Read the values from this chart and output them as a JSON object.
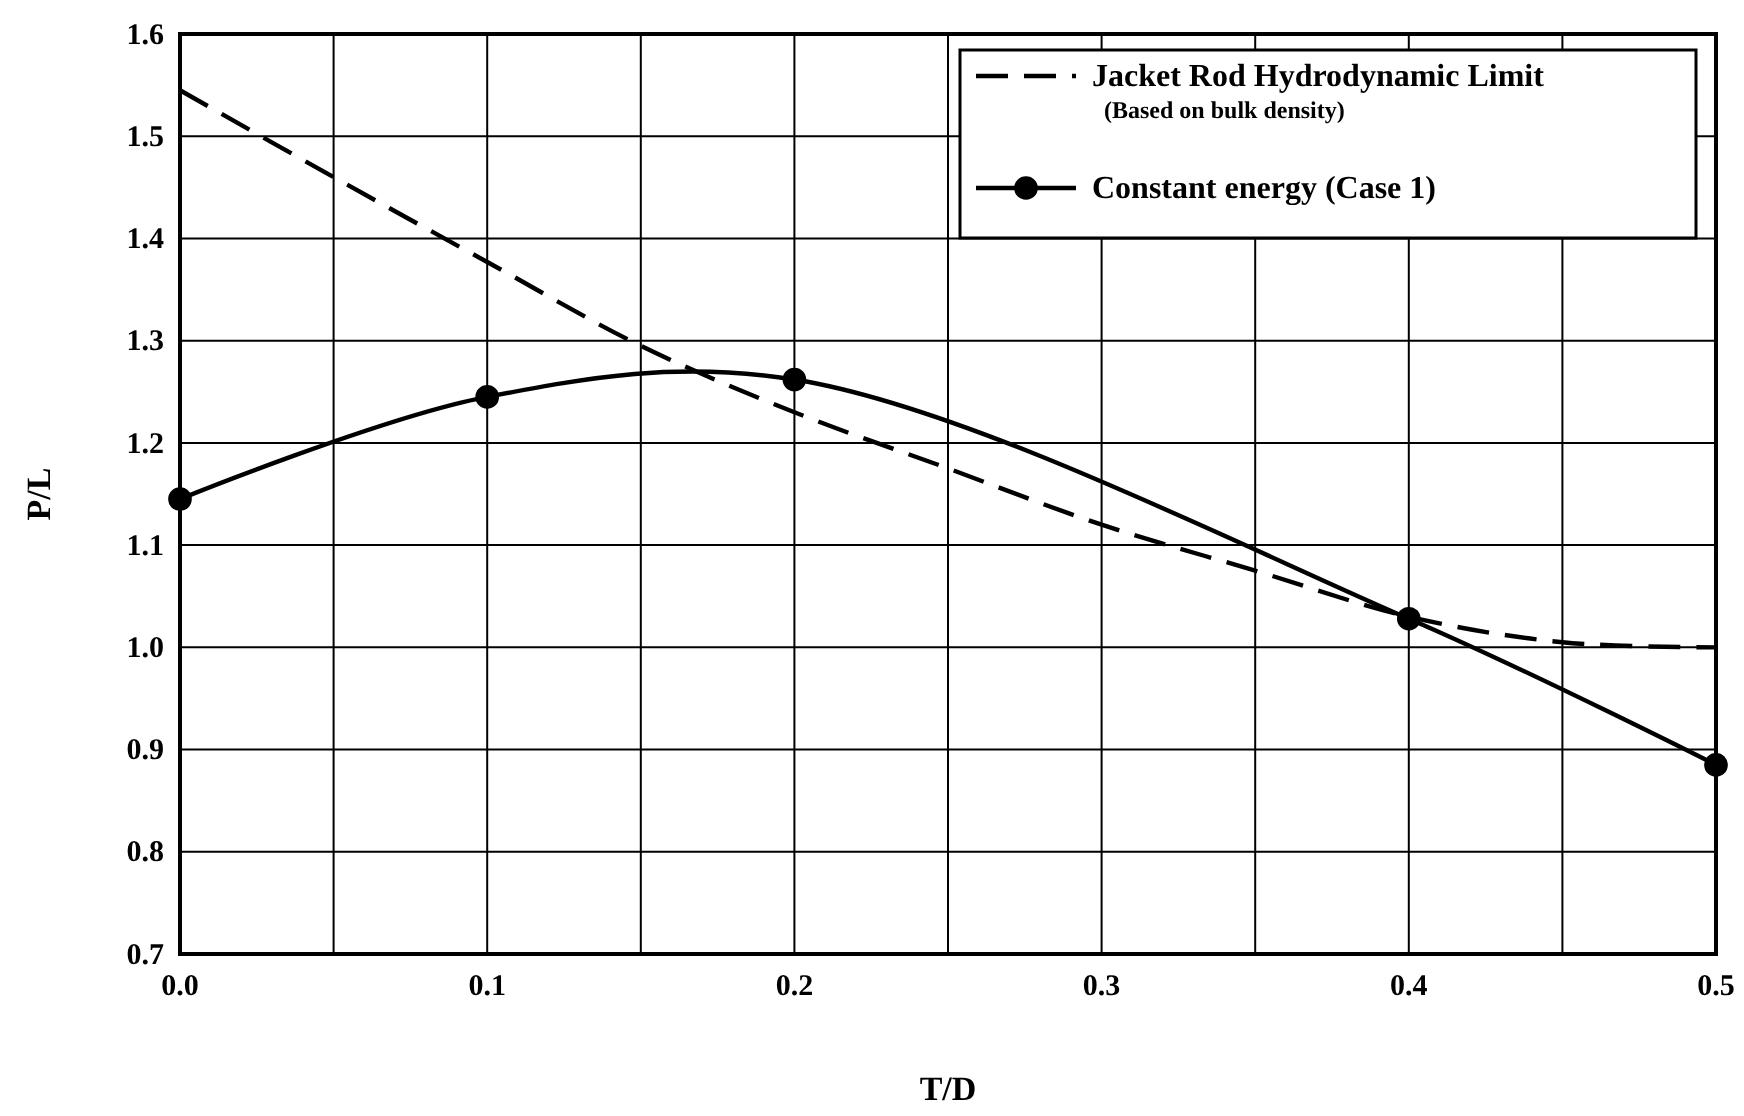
{
  "chart_data": {
    "type": "line",
    "xlabel": "T/D",
    "ylabel": "P/L",
    "xlim": [
      0,
      0.5
    ],
    "ylim": [
      0.7,
      1.6
    ],
    "xticks": [
      {
        "value": 0,
        "label": "0.0"
      },
      {
        "value": 0.05,
        "label": null
      },
      {
        "value": 0.1,
        "label": "0.1"
      },
      {
        "value": 0.15,
        "label": null
      },
      {
        "value": 0.2,
        "label": "0.2"
      },
      {
        "value": 0.25,
        "label": null
      },
      {
        "value": 0.3,
        "label": "0.3"
      },
      {
        "value": 0.35,
        "label": null
      },
      {
        "value": 0.4,
        "label": "0.4"
      },
      {
        "value": 0.45,
        "label": null
      },
      {
        "value": 0.5,
        "label": "0.5"
      }
    ],
    "yticks": [
      {
        "value": 0.7,
        "label": "0.7"
      },
      {
        "value": 0.8,
        "label": "0.8"
      },
      {
        "value": 0.9,
        "label": "0.9"
      },
      {
        "value": 1,
        "label": "1.0"
      },
      {
        "value": 1.1,
        "label": "1.1"
      },
      {
        "value": 1.2,
        "label": "1.2"
      },
      {
        "value": 1.3,
        "label": "1.3"
      },
      {
        "value": 1.4,
        "label": "1.4"
      },
      {
        "value": 1.5,
        "label": "1.5"
      },
      {
        "value": 1.6,
        "label": "1.6"
      }
    ],
    "grid": true,
    "legend": "top right",
    "series": [
      {
        "name": "Jacket Rod Hydrodynamic Limit\n(Based on bulk density)",
        "color": "#000000",
        "line_style": "dashed",
        "marker": "none",
        "x": [
          0,
          0.05,
          0.1,
          0.15,
          0.2,
          0.25,
          0.3,
          0.35,
          0.4,
          0.45,
          0.5
        ],
        "values": [
          1.545,
          1.46,
          1.377,
          1.295,
          1.23,
          1.175,
          1.12,
          1.075,
          1.03,
          1.005,
          1.0
        ]
      },
      {
        "name": "Constant energy (Case 1)",
        "color": "#000000",
        "line_style": "solid",
        "marker": "circle",
        "x": [
          0,
          0.1,
          0.2,
          0.4,
          0.5
        ],
        "values": [
          1.145,
          1.245,
          1.262,
          1.028,
          0.885
        ]
      }
    ]
  }
}
